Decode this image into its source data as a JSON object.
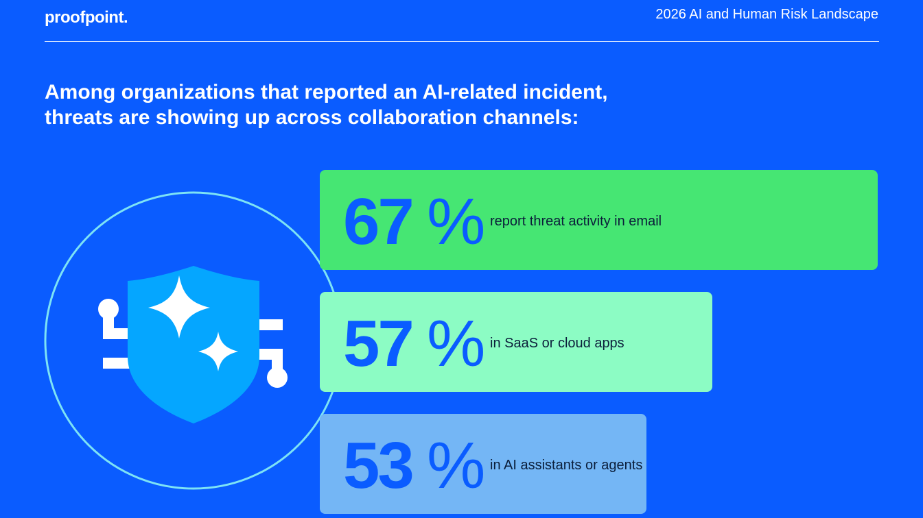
{
  "header": {
    "logo_text": "proofpoint.",
    "report_title": "2026 AI and Human Risk Landscape"
  },
  "headline": {
    "line1": "Among organizations that reported an AI-related incident,",
    "line2": "threats are showing up across collaboration channels:"
  },
  "illustration": {
    "icon": "shield-sparkle-icon",
    "ring_color": "#7de3f5",
    "shield_color": "#05a6ff"
  },
  "chart_data": {
    "type": "bar",
    "orientation": "horizontal",
    "categories": [
      "report threat activity in email",
      "in SaaS or cloud apps",
      "in AI assistants or agents"
    ],
    "values": [
      67,
      57,
      53
    ],
    "value_labels": [
      "67",
      "57",
      "53"
    ],
    "unit": "%",
    "colors": [
      "#46e673",
      "#8cfcc4",
      "#74b6f5"
    ],
    "title": "",
    "xlabel": "",
    "ylabel": ""
  },
  "colors": {
    "background": "#0a5cff",
    "accent_text": "#0a5cff"
  }
}
